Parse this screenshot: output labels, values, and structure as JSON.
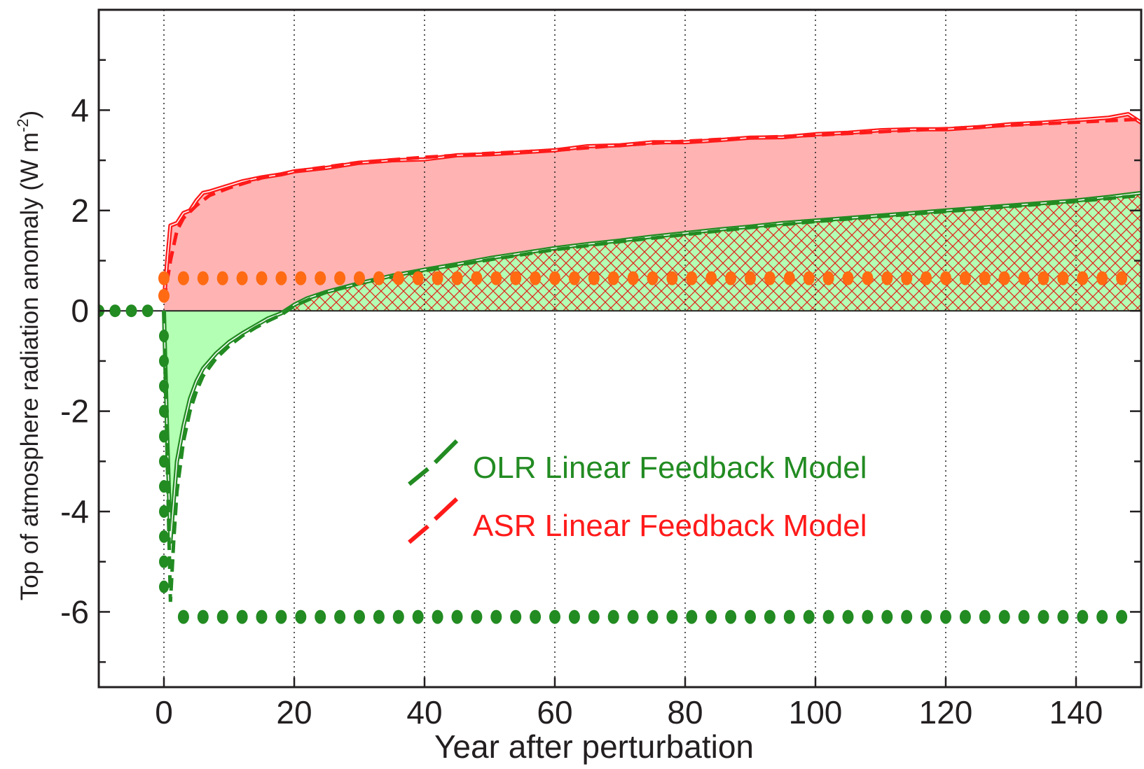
{
  "colors": {
    "asr": "#ff1a1a",
    "asr_fill": "#ffb3b3",
    "olr": "#228b22",
    "olr_fill": "#b3ffb3",
    "forcing": "#ff6a13",
    "hatch": "#e0201a",
    "axis": "#231f20"
  },
  "chart_data": {
    "type": "line",
    "xlabel": "Year after perturbation",
    "ylabel": "Top of atmosphere radiation anomaly (W m",
    "ylabel_sup": "-2",
    "ylabel_close": ")",
    "xlim": [
      -10,
      150
    ],
    "ylim": [
      -7.5,
      6
    ],
    "xticks": [
      0,
      20,
      40,
      60,
      80,
      100,
      120,
      140
    ],
    "xtick_labels": [
      "0",
      "20",
      "40",
      "60",
      "80",
      "100",
      "120",
      "140"
    ],
    "yticks": [
      -6,
      -4,
      -2,
      0,
      2,
      4
    ],
    "ytick_labels": [
      "-6",
      "-4",
      "-2",
      "0",
      "2",
      "4"
    ],
    "grid": "vertical dotted lines at x ticks",
    "legend": [
      {
        "label": "OLR Linear Feedback Model",
        "color": "#228b22",
        "style": "dashed"
      },
      {
        "label": "ASR Linear Feedback Model",
        "color": "#ff1a1a",
        "style": "dashed"
      }
    ],
    "legend_placement": "lower-center",
    "series": [
      {
        "name": "ASR",
        "style": "solid",
        "x": [
          0,
          0.5,
          1,
          2,
          3,
          4,
          5,
          6,
          7,
          8,
          10,
          12,
          15,
          18,
          20,
          25,
          30,
          35,
          40,
          45,
          50,
          55,
          60,
          65,
          70,
          75,
          80,
          85,
          90,
          95,
          100,
          105,
          110,
          115,
          120,
          125,
          130,
          135,
          140,
          145,
          148,
          150
        ],
        "y": [
          0.2,
          1.0,
          1.7,
          1.75,
          1.95,
          2.0,
          2.2,
          2.35,
          2.38,
          2.42,
          2.5,
          2.58,
          2.66,
          2.72,
          2.78,
          2.85,
          2.95,
          3.0,
          3.02,
          3.1,
          3.12,
          3.16,
          3.2,
          3.28,
          3.3,
          3.36,
          3.36,
          3.4,
          3.45,
          3.46,
          3.52,
          3.55,
          3.6,
          3.62,
          3.62,
          3.66,
          3.72,
          3.75,
          3.8,
          3.85,
          3.92,
          3.75
        ]
      },
      {
        "name": "ASR Linear Feedback Model",
        "style": "dashed",
        "x": [
          0,
          1,
          2,
          3,
          5,
          7,
          10,
          15,
          20,
          30,
          40,
          50,
          60,
          70,
          80,
          90,
          100,
          110,
          120,
          130,
          140,
          150
        ],
        "y": [
          0.2,
          1.0,
          1.6,
          1.85,
          2.1,
          2.3,
          2.45,
          2.65,
          2.78,
          2.96,
          3.06,
          3.14,
          3.2,
          3.3,
          3.38,
          3.45,
          3.5,
          3.57,
          3.63,
          3.7,
          3.76,
          3.82
        ]
      },
      {
        "name": "OLR",
        "style": "solid",
        "x": [
          0,
          0.5,
          1,
          1.5,
          2,
          3,
          4,
          5,
          6,
          8,
          10,
          12,
          14,
          16,
          18,
          20,
          22,
          25,
          30,
          35,
          40,
          45,
          50,
          55,
          60,
          65,
          70,
          75,
          80,
          85,
          90,
          95,
          100,
          105,
          110,
          115,
          120,
          125,
          130,
          135,
          140,
          145,
          150
        ],
        "y": [
          0,
          -2.5,
          -4.6,
          -3.8,
          -3.0,
          -2.3,
          -1.75,
          -1.4,
          -1.15,
          -0.85,
          -0.62,
          -0.45,
          -0.3,
          -0.15,
          -0.05,
          0.12,
          0.25,
          0.38,
          0.55,
          0.7,
          0.82,
          0.93,
          1.05,
          1.15,
          1.25,
          1.33,
          1.4,
          1.48,
          1.55,
          1.62,
          1.68,
          1.75,
          1.8,
          1.85,
          1.9,
          1.95,
          2.0,
          2.05,
          2.1,
          2.15,
          2.2,
          2.27,
          2.35
        ]
      },
      {
        "name": "OLR Linear Feedback Model",
        "style": "dashed",
        "x": [
          0,
          0.5,
          1,
          1.5,
          2,
          3,
          4,
          5,
          6,
          8,
          10,
          12,
          14,
          16,
          18,
          20,
          25,
          30,
          40,
          50,
          60,
          70,
          80,
          90,
          100,
          110,
          120,
          130,
          140,
          150
        ],
        "y": [
          0,
          -3.0,
          -5.8,
          -4.6,
          -3.6,
          -2.6,
          -2.0,
          -1.6,
          -1.3,
          -0.95,
          -0.7,
          -0.5,
          -0.34,
          -0.2,
          -0.08,
          0.1,
          0.38,
          0.55,
          0.8,
          1.02,
          1.22,
          1.38,
          1.52,
          1.66,
          1.78,
          1.88,
          1.98,
          2.08,
          2.18,
          2.3
        ]
      },
      {
        "name": "Forcing",
        "style": "dotted",
        "x": [
          -10,
          -0.5,
          0,
          1,
          150
        ],
        "y": [
          0,
          0,
          0.35,
          0.65,
          0.65
        ]
      },
      {
        "name": "OLR forcing",
        "style": "dotted",
        "x": [
          -10,
          -0.5,
          0,
          1,
          150
        ],
        "y": [
          0,
          0,
          -5.5,
          -6.1,
          -6.1
        ]
      }
    ]
  }
}
